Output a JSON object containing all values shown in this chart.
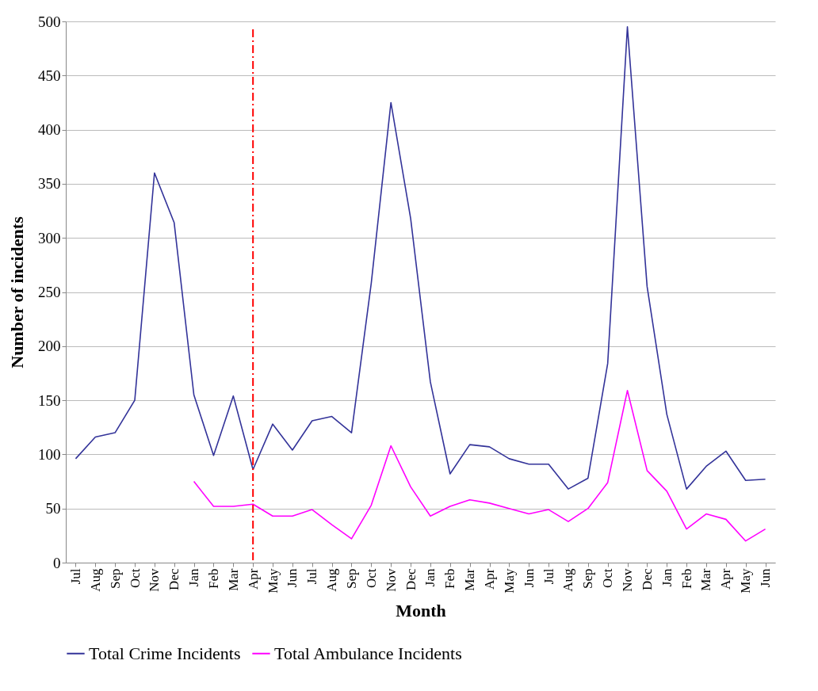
{
  "chart_data": {
    "type": "line",
    "xlabel": "Month",
    "ylabel": "Number of incidents",
    "categories": [
      "Jul",
      "Aug",
      "Sep",
      "Oct",
      "Nov",
      "Dec",
      "Jan",
      "Feb",
      "Mar",
      "Apr",
      "May",
      "Jun",
      "Jul",
      "Aug",
      "Sep",
      "Oct",
      "Nov",
      "Dec",
      "Jan",
      "Feb",
      "Mar",
      "Apr",
      "May",
      "Jun",
      "Jul",
      "Aug",
      "Sep",
      "Oct",
      "Nov",
      "Dec",
      "Jan",
      "Feb",
      "Mar",
      "Apr",
      "May",
      "Jun"
    ],
    "series": [
      {
        "name": "Total Crime Incidents",
        "color": "#333399",
        "values": [
          96,
          116,
          120,
          150,
          360,
          314,
          155,
          99,
          154,
          86,
          128,
          104,
          131,
          135,
          120,
          258,
          425,
          318,
          167,
          82,
          109,
          107,
          96,
          91,
          91,
          68,
          78,
          184,
          495,
          255,
          137,
          68,
          89,
          103,
          76,
          77
        ]
      },
      {
        "name": "Total Ambulance Incidents",
        "color": "#ff00ff",
        "values": [
          null,
          null,
          null,
          null,
          null,
          null,
          75,
          52,
          52,
          54,
          43,
          43,
          49,
          35,
          22,
          53,
          108,
          70,
          43,
          52,
          58,
          55,
          50,
          45,
          49,
          38,
          50,
          74,
          159,
          85,
          66,
          31,
          45,
          40,
          20,
          31
        ]
      }
    ],
    "ylim": [
      0,
      500
    ],
    "yticks": [
      0,
      50,
      100,
      150,
      200,
      250,
      300,
      350,
      400,
      450,
      500
    ],
    "grid": "y",
    "legend": "bottom",
    "ref_lines": [
      {
        "axis": "x",
        "value": "Apr",
        "color": "#ff0000",
        "line_style": "dashdot"
      }
    ]
  }
}
